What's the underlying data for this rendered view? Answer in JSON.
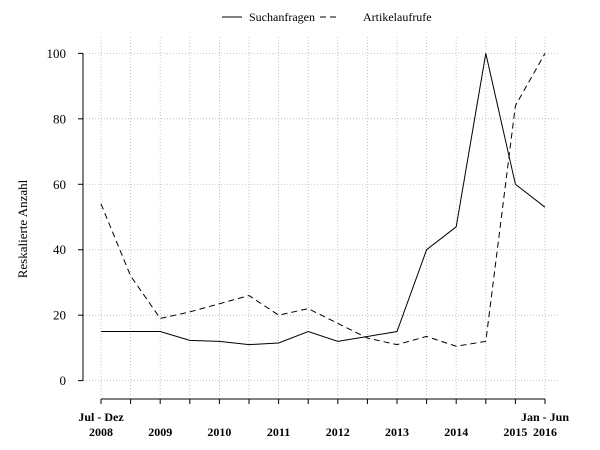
{
  "chart_data": {
    "type": "line",
    "ylabel": "Reskalierte Anzahl",
    "ylim": [
      -5,
      105
    ],
    "y_ticks": [
      0,
      20,
      40,
      60,
      80,
      100
    ],
    "grid": true,
    "legend_position": "top",
    "x_ticks": [
      {
        "x": 0,
        "label": "2008",
        "upper": "Jul - Dez"
      },
      {
        "x": 2,
        "label": "2009",
        "upper": ""
      },
      {
        "x": 4,
        "label": "2010",
        "upper": ""
      },
      {
        "x": 6,
        "label": "2011",
        "upper": ""
      },
      {
        "x": 8,
        "label": "2012",
        "upper": ""
      },
      {
        "x": 10,
        "label": "2013",
        "upper": ""
      },
      {
        "x": 12,
        "label": "2014",
        "upper": ""
      },
      {
        "x": 14,
        "label": "2015",
        "upper": ""
      },
      {
        "x": 15,
        "label": "2016",
        "upper": "Jan - Jun"
      }
    ],
    "x": [
      0,
      1,
      2,
      3,
      4,
      5,
      6,
      7,
      8,
      9,
      10,
      11,
      12,
      13,
      14,
      15
    ],
    "xlim": [
      0,
      15
    ],
    "series": [
      {
        "name": "Suchanfragen",
        "dash": "solid",
        "values": [
          15,
          15,
          15,
          12.3,
          12,
          11,
          11.5,
          15,
          12,
          13.5,
          15,
          40,
          47,
          100,
          60,
          53
        ]
      },
      {
        "name": "Artikelaufrufe",
        "dash": "dashed",
        "values": [
          54,
          32,
          19,
          21,
          23.5,
          26,
          20,
          22,
          17.5,
          13,
          11,
          13.5,
          10.5,
          12,
          84,
          100
        ]
      }
    ]
  }
}
